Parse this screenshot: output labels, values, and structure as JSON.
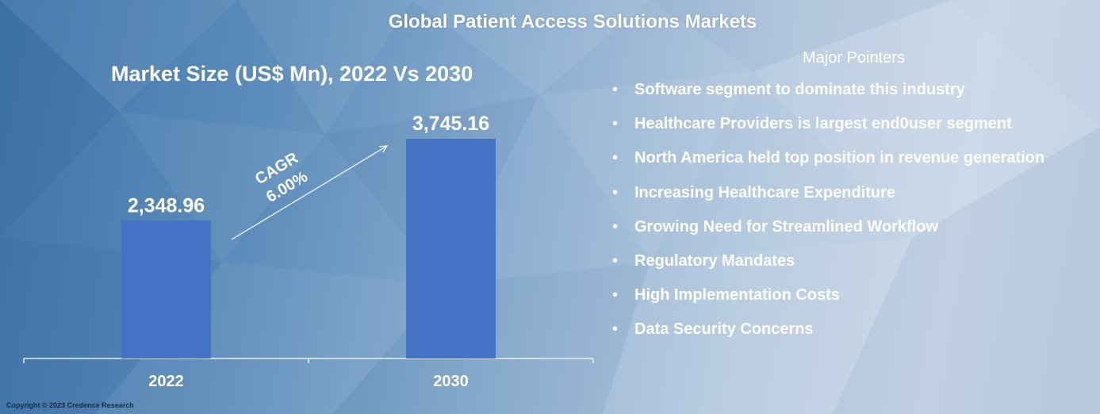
{
  "title": "Global Patient Access Solutions Markets",
  "pointers": {
    "heading": "Major Pointers",
    "items": [
      "Software segment to dominate this industry",
      "Healthcare Providers is largest end0user segment",
      "North America held top position in revenue generation",
      "Increasing Healthcare Expenditure",
      "Growing Need for Streamlined Workflow",
      "Regulatory Mandates",
      "High Implementation Costs",
      "Data Security Concerns"
    ]
  },
  "copyright": "Copyright © 2023 Credence Research",
  "colors": {
    "bar": "#4472c4",
    "text": "#ffffff"
  },
  "chart_data": {
    "type": "bar",
    "title": "Market Size (US$ Mn), 2022 Vs 2030",
    "categories": [
      "2022",
      "2030"
    ],
    "values": [
      2348.96,
      3745.16
    ],
    "data_labels": [
      "2,348.96",
      "3,745.16"
    ],
    "annotation": {
      "line1": "CAGR",
      "line2": "6.00%"
    },
    "xlabel": "",
    "ylabel": "",
    "grid": false
  }
}
